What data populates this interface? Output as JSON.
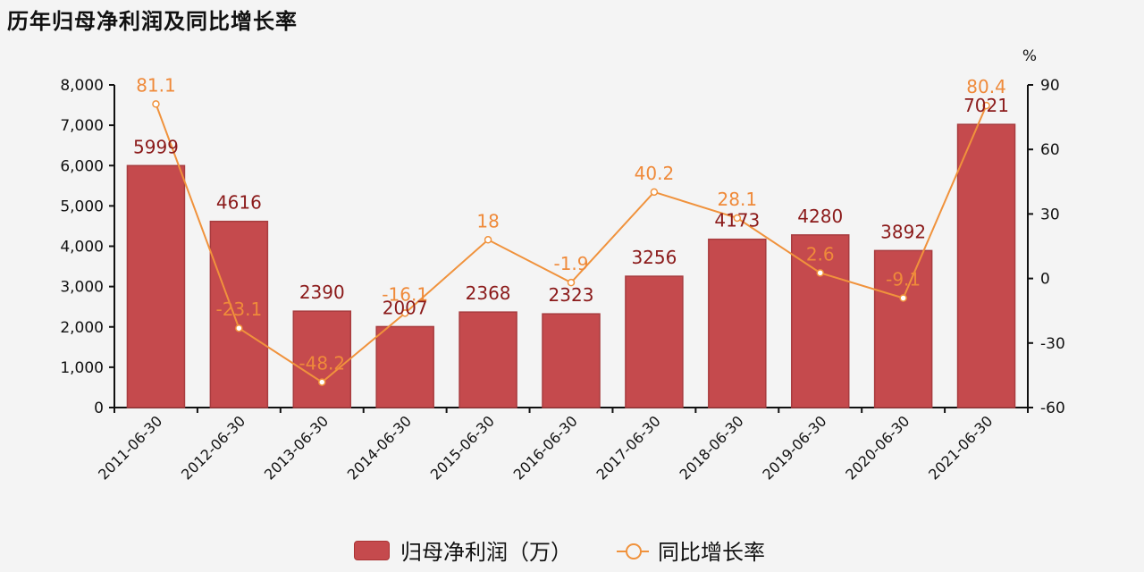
{
  "title": "历年归母净利润及同比增长率",
  "legend": {
    "bar_label": "归母净利润（万）",
    "line_label": "同比增长率"
  },
  "colors": {
    "bar": "#c54a4d",
    "bar_label": "#8b1a1a",
    "line": "#f0923c",
    "line_label": "#ef8a3a"
  },
  "chart_data": {
    "type": "bar+line",
    "title": "历年归母净利润及同比增长率",
    "categories": [
      "2011-06-30",
      "2012-06-30",
      "2013-06-30",
      "2014-06-30",
      "2015-06-30",
      "2016-06-30",
      "2017-06-30",
      "2018-06-30",
      "2019-06-30",
      "2020-06-30",
      "2021-06-30"
    ],
    "series": [
      {
        "name": "归母净利润（万）",
        "type": "bar",
        "axis": "left",
        "values": [
          5999,
          4616,
          2390,
          2007,
          2368,
          2323,
          3256,
          4173,
          4280,
          3892,
          7021
        ]
      },
      {
        "name": "同比增长率",
        "type": "line",
        "axis": "right",
        "values": [
          81.1,
          -23.1,
          -48.2,
          -16.1,
          18,
          -1.9,
          40.2,
          28.1,
          2.6,
          -9.1,
          80.4
        ]
      }
    ],
    "left_axis": {
      "ylim": [
        0,
        8000
      ],
      "ticks": [
        "0",
        "1,000",
        "2,000",
        "3,000",
        "4,000",
        "5,000",
        "6,000",
        "7,000",
        "8,000"
      ]
    },
    "right_axis": {
      "label": "%",
      "ylim": [
        -60,
        90
      ],
      "ticks": [
        "-60",
        "-30",
        "0",
        "30",
        "60",
        "90"
      ]
    },
    "xlabel": "",
    "grid": false,
    "legend_position": "bottom"
  }
}
